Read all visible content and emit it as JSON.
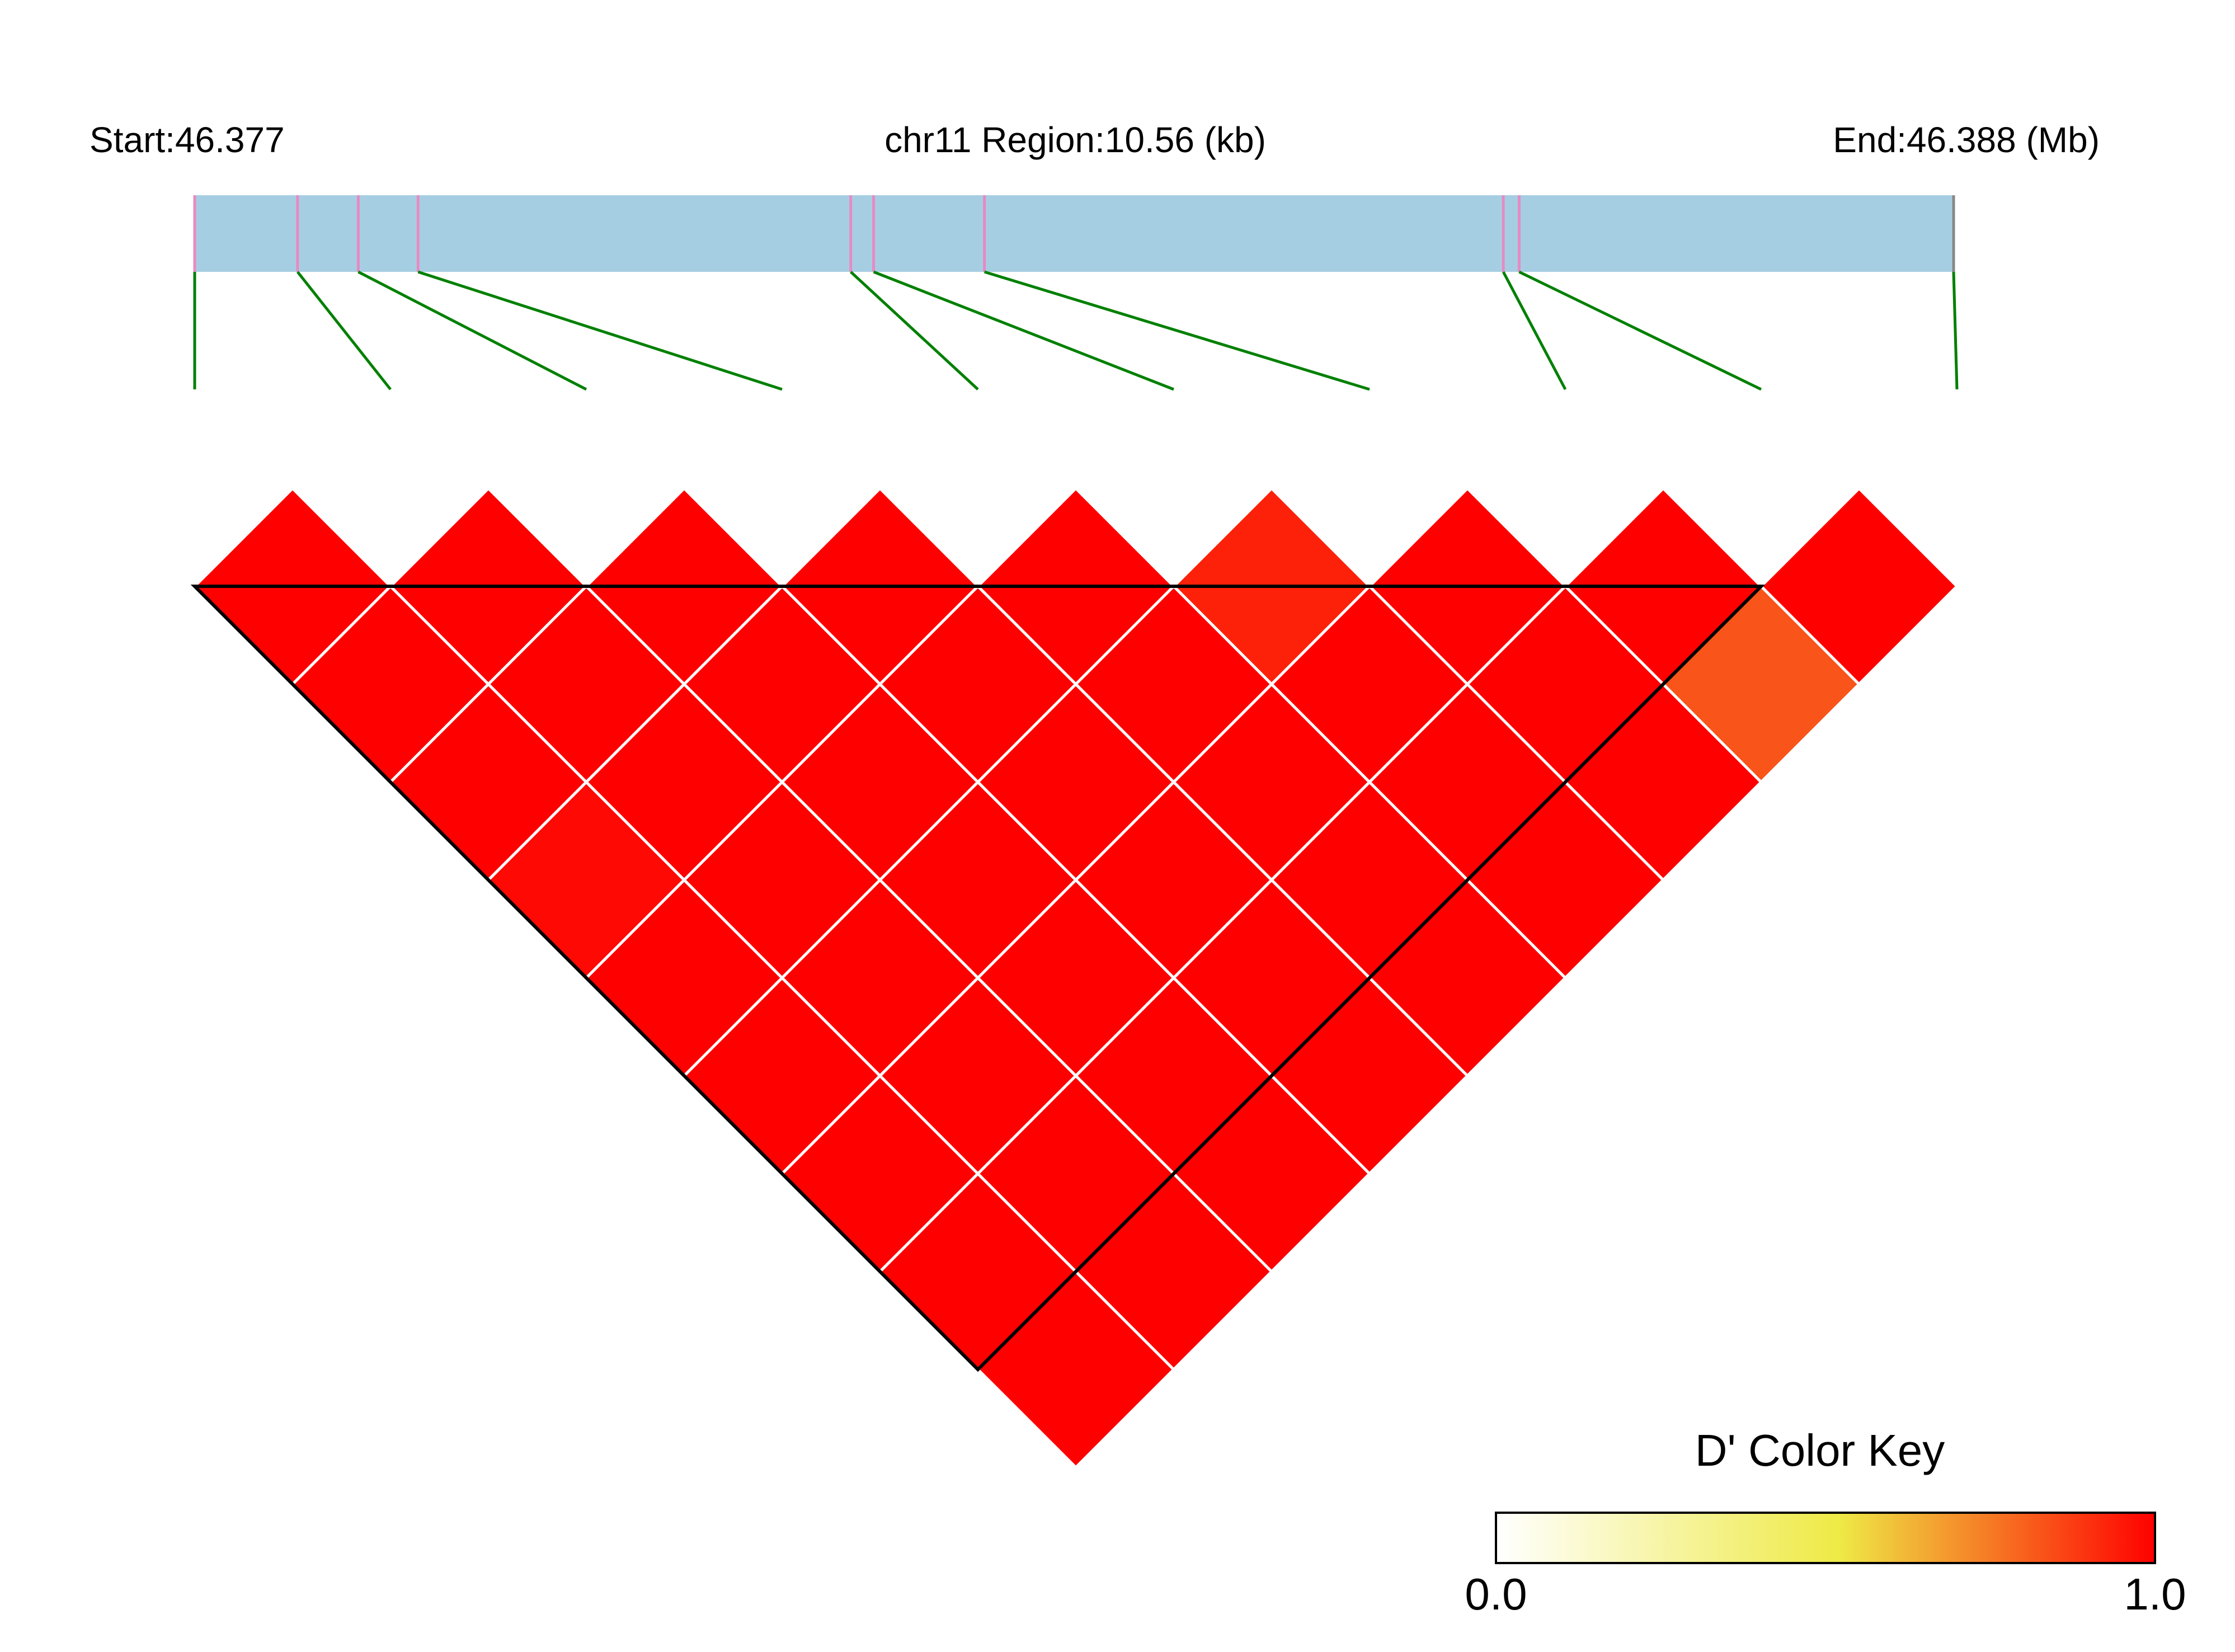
{
  "chart_data": {
    "type": "heatmap",
    "header": {
      "start_label": "Start:46.377",
      "region_label": "chr11 Region:10.56 (kb)",
      "end_label": "End:46.388 (Mb)"
    },
    "region": {
      "chromosome": "chr11",
      "start_mb": 46.377,
      "end_mb": 46.388,
      "length_kb": 10.56
    },
    "snp_count": 10,
    "snp_relative_positions": [
      0.0,
      0.0585,
      0.093,
      0.127,
      0.373,
      0.386,
      0.449,
      0.744,
      0.753,
      1.0
    ],
    "ld_matrix_dprime": [
      [
        null,
        1.0,
        1.0,
        1.0,
        0.98,
        1.0,
        1.0,
        1.0,
        1.0,
        1.0
      ],
      [
        1.0,
        null,
        1.0,
        1.0,
        1.0,
        1.0,
        1.0,
        1.0,
        1.0,
        1.0
      ],
      [
        1.0,
        1.0,
        null,
        1.0,
        1.0,
        1.0,
        1.0,
        1.0,
        1.0,
        1.0
      ],
      [
        1.0,
        1.0,
        1.0,
        null,
        1.0,
        1.0,
        1.0,
        1.0,
        1.0,
        1.0
      ],
      [
        0.98,
        1.0,
        1.0,
        1.0,
        null,
        1.0,
        1.0,
        1.0,
        1.0,
        1.0
      ],
      [
        1.0,
        1.0,
        1.0,
        1.0,
        1.0,
        null,
        0.93,
        1.0,
        1.0,
        1.0
      ],
      [
        1.0,
        1.0,
        1.0,
        1.0,
        1.0,
        0.93,
        null,
        1.0,
        1.0,
        1.0
      ],
      [
        1.0,
        1.0,
        1.0,
        1.0,
        1.0,
        1.0,
        1.0,
        null,
        1.0,
        0.82
      ],
      [
        1.0,
        1.0,
        1.0,
        1.0,
        1.0,
        1.0,
        1.0,
        1.0,
        null,
        1.0
      ],
      [
        1.0,
        1.0,
        1.0,
        1.0,
        1.0,
        1.0,
        1.0,
        0.82,
        1.0,
        null
      ]
    ],
    "blocks": [
      {
        "first_snp": 1,
        "last_snp": 9
      }
    ],
    "color_key": {
      "title": "D' Color Key",
      "min_label": "0.0",
      "max_label": "1.0",
      "min": 0.0,
      "max": 1.0,
      "colors": [
        "#ffffff",
        "#eeea46",
        "#ff0000"
      ]
    },
    "colors": {
      "region_bar": "#a6cee3",
      "snp_tick": "#e78ac3",
      "end_tick": "#888888",
      "connector": "#008000",
      "grid": "#ffffff",
      "block_outline": "#000000"
    }
  }
}
